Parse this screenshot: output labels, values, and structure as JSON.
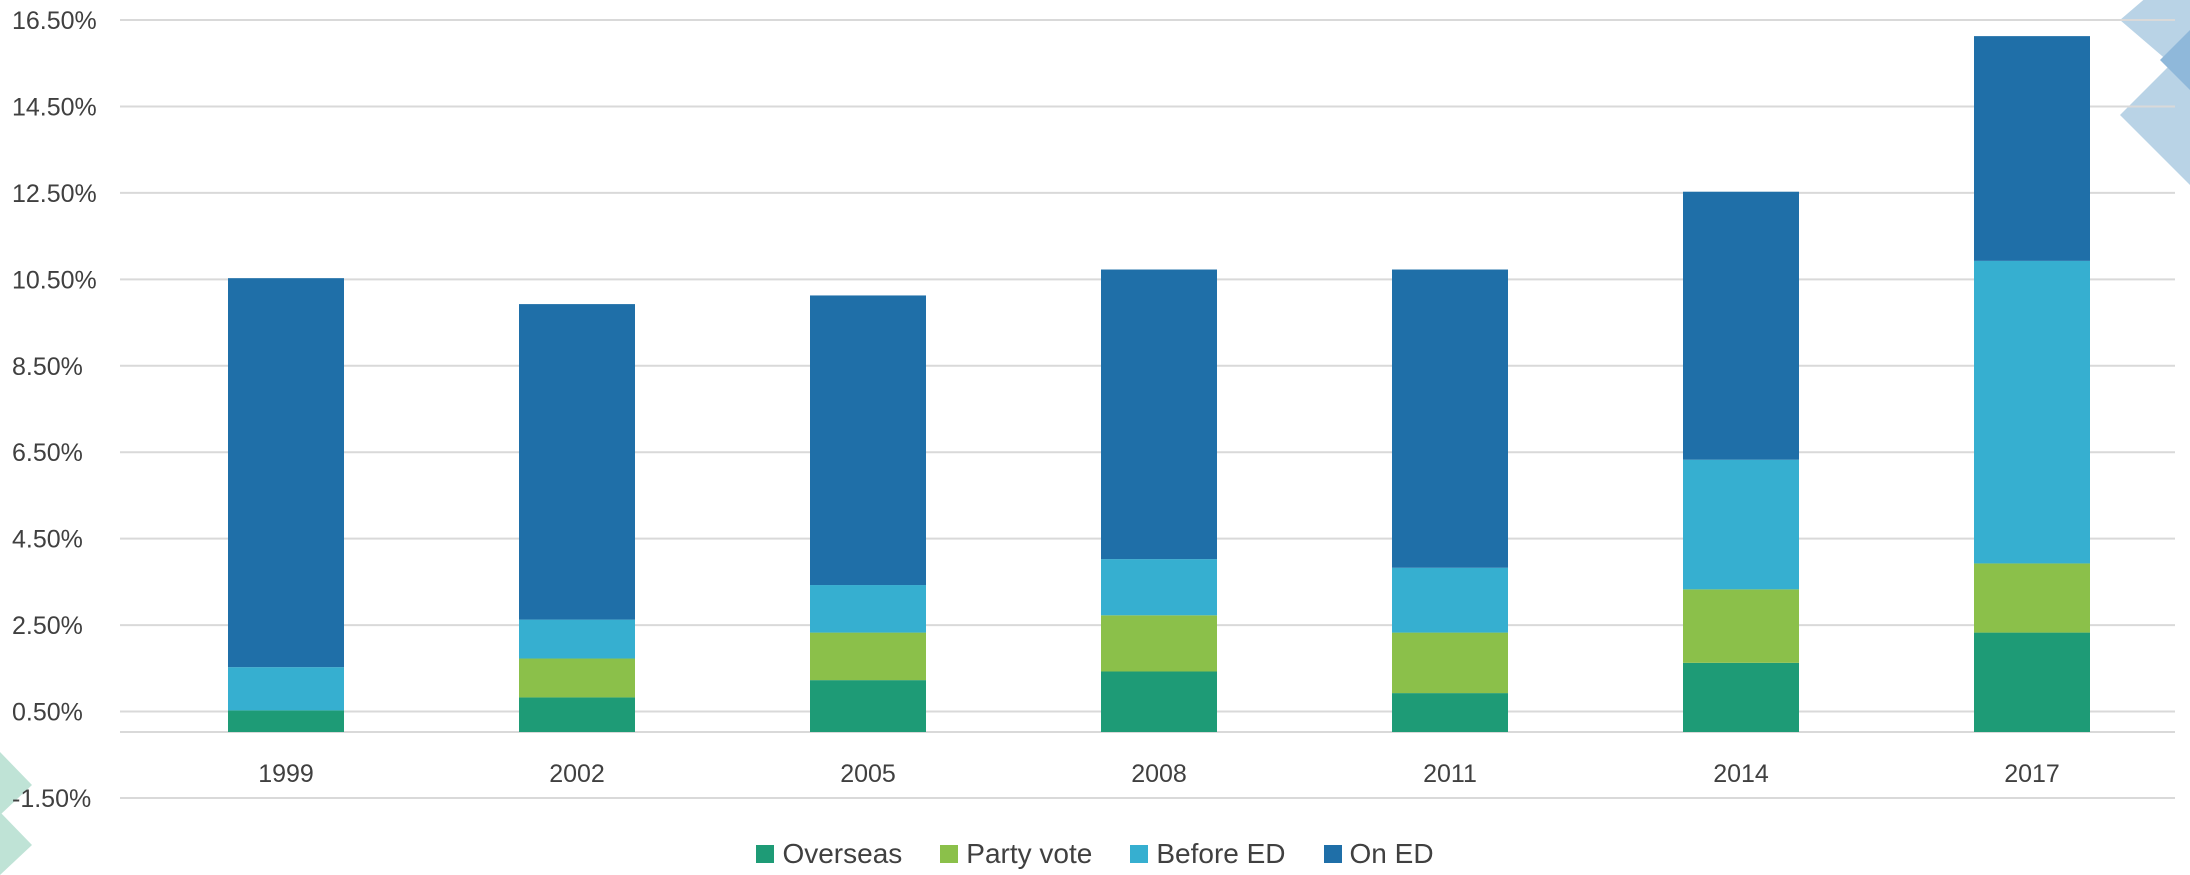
{
  "chart_data": {
    "type": "bar",
    "stacked": true,
    "categories": [
      "1999",
      "2002",
      "2005",
      "2008",
      "2011",
      "2014",
      "2017"
    ],
    "series": [
      {
        "name": "Overseas",
        "color": "#1e9b76",
        "values": [
          0.5,
          0.8,
          1.2,
          1.4,
          0.9,
          1.6,
          2.3
        ]
      },
      {
        "name": "Party vote",
        "color": "#8bc04a",
        "values": [
          0.0,
          0.9,
          1.1,
          1.3,
          1.4,
          1.7,
          1.6
        ]
      },
      {
        "name": "Before ED",
        "color": "#36afd0",
        "values": [
          1.0,
          0.9,
          1.1,
          1.3,
          1.5,
          3.0,
          7.0
        ]
      },
      {
        "name": "On ED",
        "color": "#1f6fa8",
        "values": [
          9.0,
          7.3,
          6.7,
          6.7,
          6.9,
          6.2,
          5.2
        ]
      }
    ],
    "y_ticks": [
      "16.50%",
      "14.50%",
      "12.50%",
      "10.50%",
      "8.50%",
      "6.50%",
      "4.50%",
      "2.50%",
      "0.50%",
      "-1.50%"
    ],
    "ylim": [
      -1.5,
      16.5
    ],
    "grid": true,
    "legend_position": "bottom"
  }
}
